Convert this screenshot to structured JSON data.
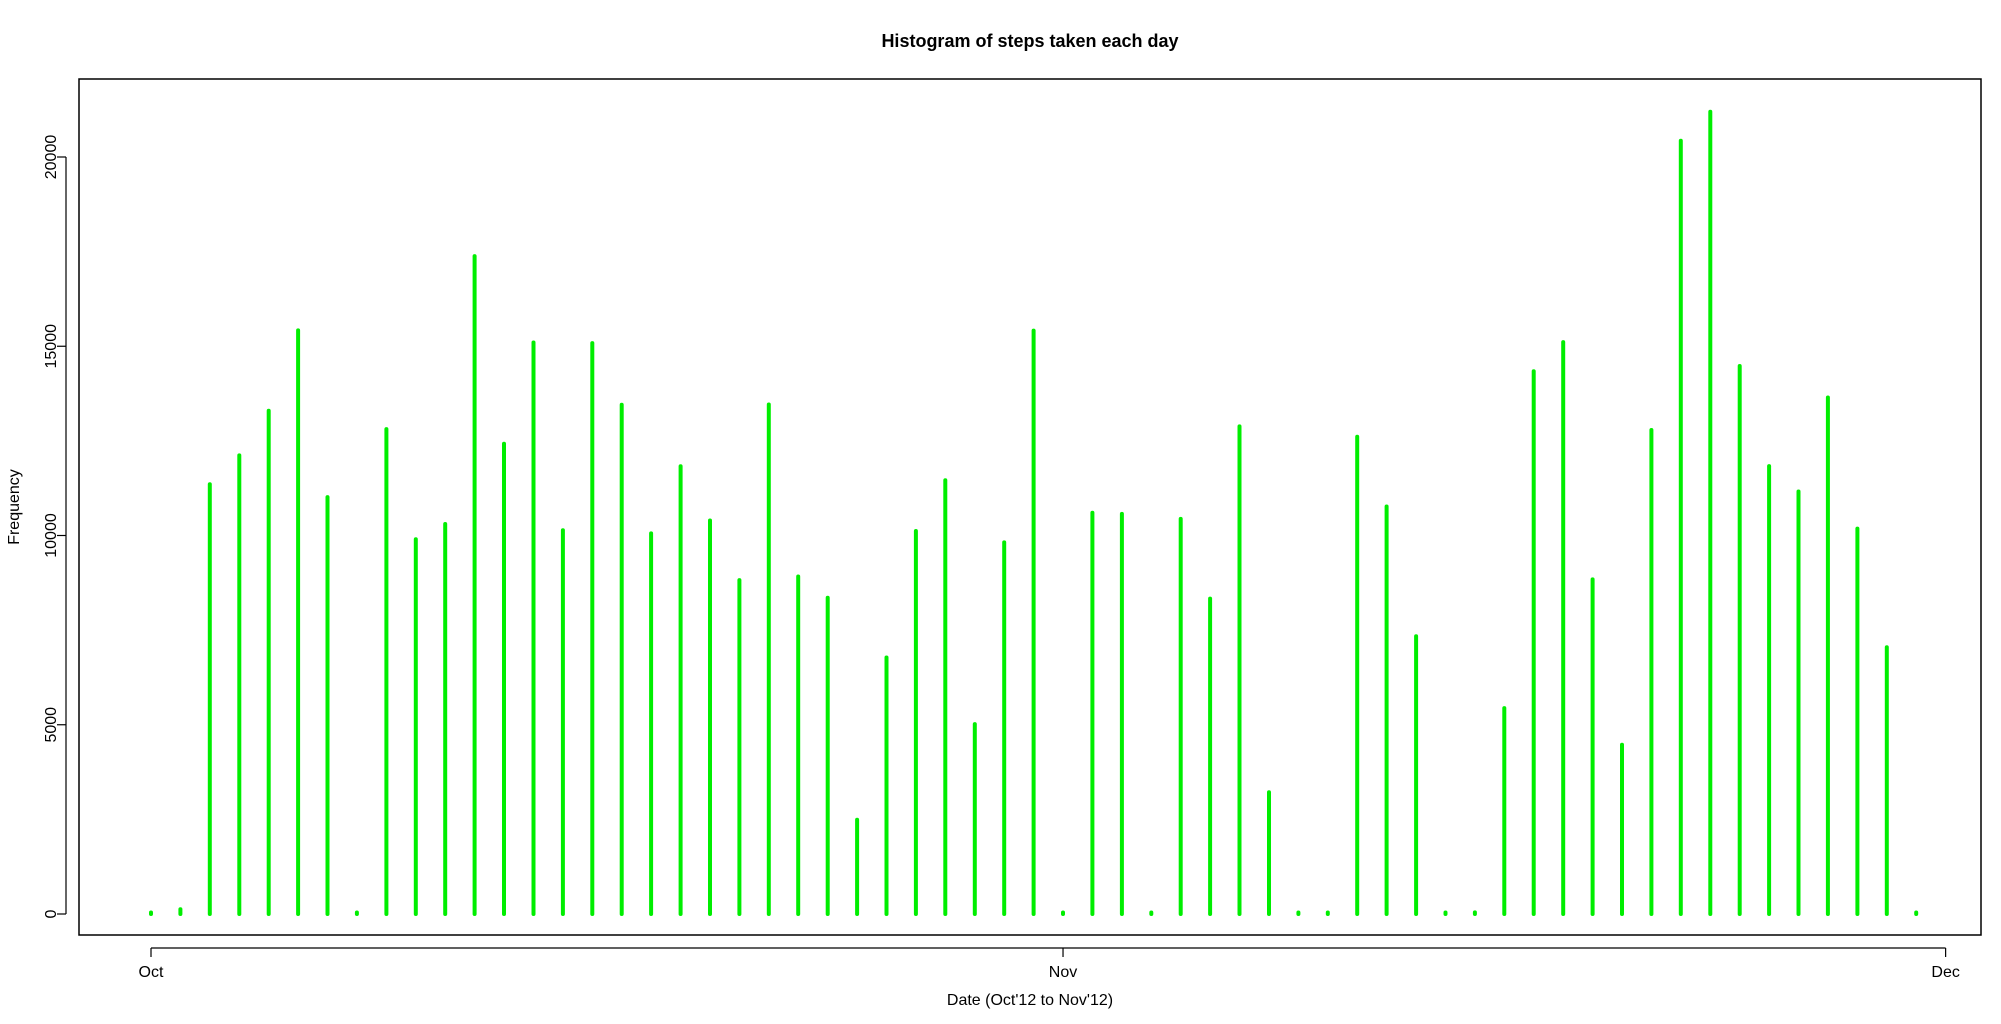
{
  "chart_data": {
    "type": "bar",
    "title": "Histogram of steps taken each day",
    "xlabel": "Date (Oct'12 to Nov'12)",
    "ylabel": "Frequency",
    "x": [
      "2012-10-01",
      "2012-10-02",
      "2012-10-03",
      "2012-10-04",
      "2012-10-05",
      "2012-10-06",
      "2012-10-07",
      "2012-10-08",
      "2012-10-09",
      "2012-10-10",
      "2012-10-11",
      "2012-10-12",
      "2012-10-13",
      "2012-10-14",
      "2012-10-15",
      "2012-10-16",
      "2012-10-17",
      "2012-10-18",
      "2012-10-19",
      "2012-10-20",
      "2012-10-21",
      "2012-10-22",
      "2012-10-23",
      "2012-10-24",
      "2012-10-25",
      "2012-10-26",
      "2012-10-27",
      "2012-10-28",
      "2012-10-29",
      "2012-10-30",
      "2012-10-31",
      "2012-11-01",
      "2012-11-02",
      "2012-11-03",
      "2012-11-04",
      "2012-11-05",
      "2012-11-06",
      "2012-11-07",
      "2012-11-08",
      "2012-11-09",
      "2012-11-10",
      "2012-11-11",
      "2012-11-12",
      "2012-11-13",
      "2012-11-14",
      "2012-11-15",
      "2012-11-16",
      "2012-11-17",
      "2012-11-18",
      "2012-11-19",
      "2012-11-20",
      "2012-11-21",
      "2012-11-22",
      "2012-11-23",
      "2012-11-24",
      "2012-11-25",
      "2012-11-26",
      "2012-11-27",
      "2012-11-28",
      "2012-11-29",
      "2012-11-30"
    ],
    "values": [
      0,
      126,
      11352,
      12116,
      13294,
      15420,
      11015,
      0,
      12811,
      9900,
      10304,
      17382,
      12426,
      15098,
      10139,
      15084,
      13452,
      10056,
      11829,
      10395,
      8821,
      13460,
      8918,
      8355,
      2492,
      6778,
      10119,
      11458,
      5018,
      9819,
      15414,
      0,
      10600,
      10571,
      0,
      10439,
      8334,
      12883,
      3219,
      0,
      0,
      12608,
      10765,
      7336,
      0,
      41,
      5441,
      14339,
      15110,
      8841,
      4472,
      12787,
      20427,
      21194,
      14478,
      11834,
      11162,
      13646,
      10183,
      7047,
      0
    ],
    "xticks": [
      "Oct",
      "Nov",
      "Dec"
    ],
    "xtick_dates": [
      "2012-10-01",
      "2012-11-01",
      "2012-12-01"
    ],
    "yticks": [
      0,
      5000,
      10000,
      15000,
      20000
    ],
    "ylim": [
      0,
      22000
    ],
    "grid": false,
    "bar_color": "#00ee00"
  }
}
